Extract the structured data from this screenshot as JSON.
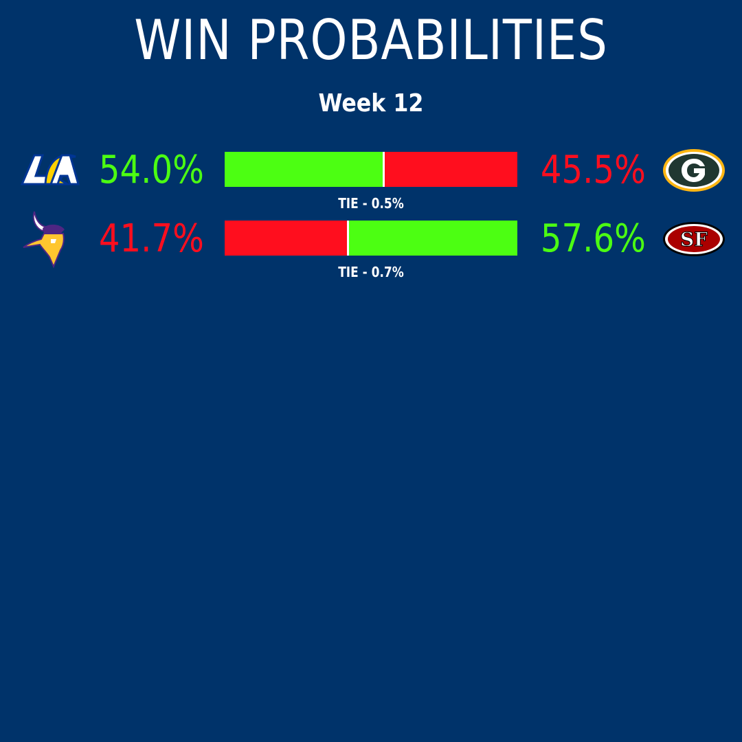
{
  "title": "WIN PROBABILITIES",
  "subtitle": "Week 12",
  "colors": {
    "background": "#00336a",
    "favorite": "#4cff12",
    "underdog": "#ff0e1e",
    "text": "#ffffff"
  },
  "chart_data": {
    "type": "bar",
    "stacked": true,
    "orientation": "horizontal",
    "games": [
      {
        "left_team_logo": "rams-logo-icon",
        "right_team_logo": "packers-logo-icon",
        "left_pct_label": "54.0%",
        "right_pct_label": "45.5%",
        "tie_label": "TIE - 0.5%",
        "left_value": 54.0,
        "right_value": 45.5,
        "tie_value": 0.5
      },
      {
        "left_team_logo": "vikings-logo-icon",
        "right_team_logo": "49ers-logo-icon",
        "left_pct_label": "41.7%",
        "right_pct_label": "57.6%",
        "tie_label": "TIE - 0.7%",
        "left_value": 41.7,
        "right_value": 57.6,
        "tie_value": 0.7
      }
    ]
  }
}
